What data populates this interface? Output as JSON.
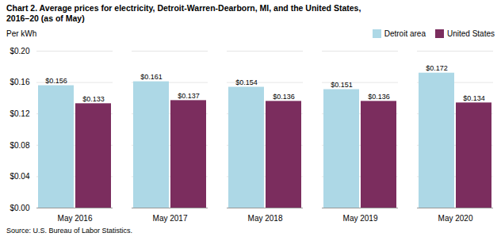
{
  "chart_data": {
    "type": "bar",
    "title": "Chart 2. Average prices for electricity, Detroit-Warren-Dearborn, MI, and the United States,\n2016–20  (as of May)",
    "ylabel": "Per kWh",
    "source": "Source: U.S. Bureau of Labor Statistics.",
    "categories": [
      "May 2016",
      "May 2017",
      "May 2018",
      "May 2019",
      "May 2020"
    ],
    "series": [
      {
        "name": "Detroit area",
        "color": "#add8e6",
        "values": [
          0.156,
          0.161,
          0.154,
          0.151,
          0.172
        ],
        "value_labels": [
          "$0.156",
          "$0.161",
          "$0.154",
          "$0.151",
          "$0.172"
        ]
      },
      {
        "name": "United States",
        "color": "#7b2d5e",
        "values": [
          0.133,
          0.137,
          0.136,
          0.136,
          0.134
        ],
        "value_labels": [
          "$0.133",
          "$0.137",
          "$0.136",
          "$0.136",
          "$0.134"
        ]
      }
    ],
    "ylim": [
      0.0,
      0.2
    ],
    "yticks": [
      {
        "value": 0.0,
        "label": "$0.00"
      },
      {
        "value": 0.04,
        "label": "$0.04"
      },
      {
        "value": 0.08,
        "label": "$0.08"
      },
      {
        "value": 0.12,
        "label": "$0.12"
      },
      {
        "value": 0.16,
        "label": "$0.16"
      },
      {
        "value": 0.2,
        "label": "$0.20"
      }
    ],
    "grid": true,
    "legend": "upper right",
    "data_labels": true
  }
}
